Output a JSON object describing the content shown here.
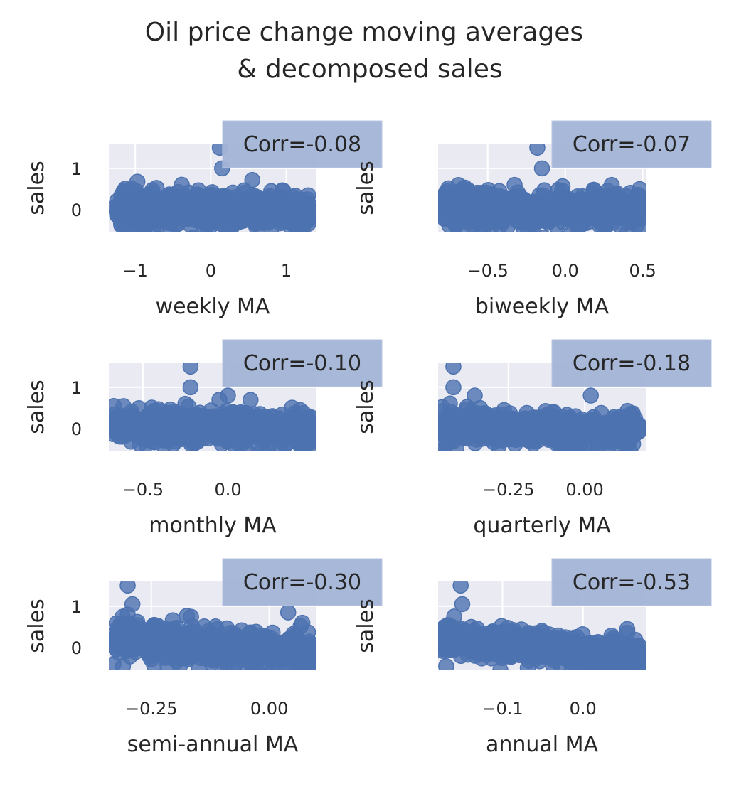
{
  "title_lines": [
    "Oil price change moving averages",
    "& decomposed sales"
  ],
  "colors": {
    "points": "#4c72b0",
    "panel_bg": "#eaeaf2",
    "grid": "#ffffff",
    "text": "#262626",
    "corr_box": "#a3b4d6"
  },
  "chart_data": [
    {
      "type": "scatter",
      "xlabel": "weekly MA",
      "ylabel": "sales",
      "annotation": "Corr=-0.08",
      "xlim": [
        -1.35,
        1.4
      ],
      "ylim": [
        -0.55,
        1.6
      ],
      "xticks": [
        -1,
        0,
        1
      ],
      "xtick_labels": [
        "−1",
        "0",
        "1"
      ],
      "yticks": [
        0,
        1
      ],
      "ytick_labels": [
        "0",
        "1"
      ],
      "show_ytick_labels": true,
      "grid": true,
      "cloud": {
        "x_range": [
          -1.25,
          1.3
        ],
        "y_center": 0.0,
        "y_spread": 0.2,
        "slope": -0.02
      },
      "points": [
        [
          0.12,
          1.5
        ],
        [
          0.15,
          1.0
        ],
        [
          -1.28,
          0.05
        ],
        [
          1.28,
          0.25
        ],
        [
          0.55,
          0.72
        ],
        [
          -0.95,
          -0.25
        ],
        [
          0.8,
          0.45
        ]
      ],
      "regression": {
        "x": [
          -1.25,
          1.3
        ],
        "y": [
          0.03,
          -0.01
        ]
      }
    },
    {
      "type": "scatter",
      "xlabel": "biweekly MA",
      "ylabel": "sales",
      "annotation": "Corr=-0.07",
      "xlim": [
        -0.82,
        0.52
      ],
      "ylim": [
        -0.55,
        1.6
      ],
      "xticks": [
        -0.5,
        0.0,
        0.5
      ],
      "xtick_labels": [
        "−0.5",
        "0.0",
        "0.5"
      ],
      "yticks": [
        0,
        1
      ],
      "ytick_labels": [
        "0",
        "1"
      ],
      "show_ytick_labels": false,
      "grid": true,
      "cloud": {
        "x_range": [
          -0.78,
          0.5
        ],
        "y_center": 0.05,
        "y_spread": 0.22,
        "slope": -0.05
      },
      "points": [
        [
          -0.18,
          1.5
        ],
        [
          -0.15,
          1.0
        ],
        [
          -0.78,
          0.15
        ],
        [
          0.48,
          0.5
        ],
        [
          0.3,
          0.6
        ],
        [
          -0.6,
          -0.3
        ]
      ],
      "regression": {
        "x": [
          -0.78,
          0.5
        ],
        "y": [
          0.06,
          -0.02
        ]
      }
    },
    {
      "type": "scatter",
      "xlabel": "monthly MA",
      "ylabel": "sales",
      "annotation": "Corr=-0.10",
      "xlim": [
        -0.7,
        0.52
      ],
      "ylim": [
        -0.55,
        1.6
      ],
      "xticks": [
        -0.5,
        0.0
      ],
      "xtick_labels": [
        "−0.5",
        "0.0"
      ],
      "yticks": [
        0,
        1
      ],
      "ytick_labels": [
        "0",
        "1"
      ],
      "show_ytick_labels": true,
      "grid": true,
      "cloud": {
        "x_range": [
          -0.68,
          0.5
        ],
        "y_center": 0.02,
        "y_spread": 0.2,
        "slope": -0.08
      },
      "points": [
        [
          -0.22,
          1.5
        ],
        [
          -0.22,
          1.0
        ],
        [
          -0.68,
          0.15
        ],
        [
          0.5,
          0.25
        ],
        [
          -0.25,
          0.6
        ],
        [
          0.0,
          0.8
        ],
        [
          -0.05,
          0.7
        ]
      ],
      "regression": {
        "x": [
          -0.68,
          0.5
        ],
        "y": [
          0.1,
          -0.05
        ]
      }
    },
    {
      "type": "scatter",
      "xlabel": "quarterly MA",
      "ylabel": "sales",
      "annotation": "Corr=-0.18",
      "xlim": [
        -0.48,
        0.2
      ],
      "ylim": [
        -0.55,
        1.6
      ],
      "xticks": [
        -0.25,
        0.0
      ],
      "xtick_labels": [
        "−0.25",
        "0.00"
      ],
      "yticks": [
        0,
        1
      ],
      "ytick_labels": [
        "0",
        "1"
      ],
      "show_ytick_labels": false,
      "grid": true,
      "cloud": {
        "x_range": [
          -0.47,
          0.18
        ],
        "y_center": 0.0,
        "y_spread": 0.2,
        "slope": -0.3
      },
      "points": [
        [
          -0.43,
          1.5
        ],
        [
          -0.43,
          1.0
        ],
        [
          -0.36,
          0.8
        ],
        [
          0.02,
          0.8
        ],
        [
          -0.46,
          -0.5
        ],
        [
          -0.42,
          -0.45
        ],
        [
          0.15,
          0.35
        ]
      ],
      "regression": {
        "x": [
          -0.47,
          0.18
        ],
        "y": [
          0.12,
          -0.07
        ]
      }
    },
    {
      "type": "scatter",
      "xlabel": "semi-annual MA",
      "ylabel": "sales",
      "annotation": "Corr=-0.30",
      "xlim": [
        -0.34,
        0.1
      ],
      "ylim": [
        -0.55,
        1.6
      ],
      "xticks": [
        -0.25,
        0.0
      ],
      "xtick_labels": [
        "−0.25",
        "0.00"
      ],
      "yticks": [
        0,
        1
      ],
      "ytick_labels": [
        "0",
        "1"
      ],
      "show_ytick_labels": true,
      "grid": true,
      "cloud": {
        "x_range": [
          -0.33,
          0.09
        ],
        "y_center": 0.05,
        "y_spread": 0.2,
        "slope": -0.8
      },
      "points": [
        [
          -0.3,
          1.5
        ],
        [
          -0.29,
          1.05
        ],
        [
          -0.3,
          0.8
        ],
        [
          -0.33,
          -0.4
        ],
        [
          -0.31,
          -0.45
        ],
        [
          0.04,
          0.85
        ],
        [
          0.07,
          0.6
        ]
      ],
      "regression": {
        "x": [
          -0.32,
          0.09
        ],
        "y": [
          0.28,
          -0.05
        ]
      }
    },
    {
      "type": "scatter",
      "xlabel": "annual MA",
      "ylabel": "sales",
      "annotation": "Corr=-0.53",
      "xlim": [
        -0.18,
        0.078
      ],
      "ylim": [
        -0.55,
        1.6
      ],
      "xticks": [
        -0.1,
        0.0
      ],
      "xtick_labels": [
        "−0.1",
        "0.0"
      ],
      "yticks": [
        0,
        1
      ],
      "ytick_labels": [
        "0",
        "1"
      ],
      "show_ytick_labels": false,
      "grid": true,
      "cloud": {
        "x_range": [
          -0.175,
          0.072
        ],
        "y_center": 0.0,
        "y_spread": 0.18,
        "slope": -2.0
      },
      "points": [
        [
          -0.152,
          1.5
        ],
        [
          -0.15,
          1.05
        ],
        [
          -0.16,
          0.75
        ],
        [
          -0.178,
          0.4
        ],
        [
          0.055,
          0.45
        ],
        [
          -0.17,
          -0.45
        ],
        [
          0.05,
          -0.4
        ]
      ],
      "regression": {
        "x": [
          -0.175,
          0.072
        ],
        "y": [
          0.22,
          -0.1
        ]
      }
    }
  ]
}
